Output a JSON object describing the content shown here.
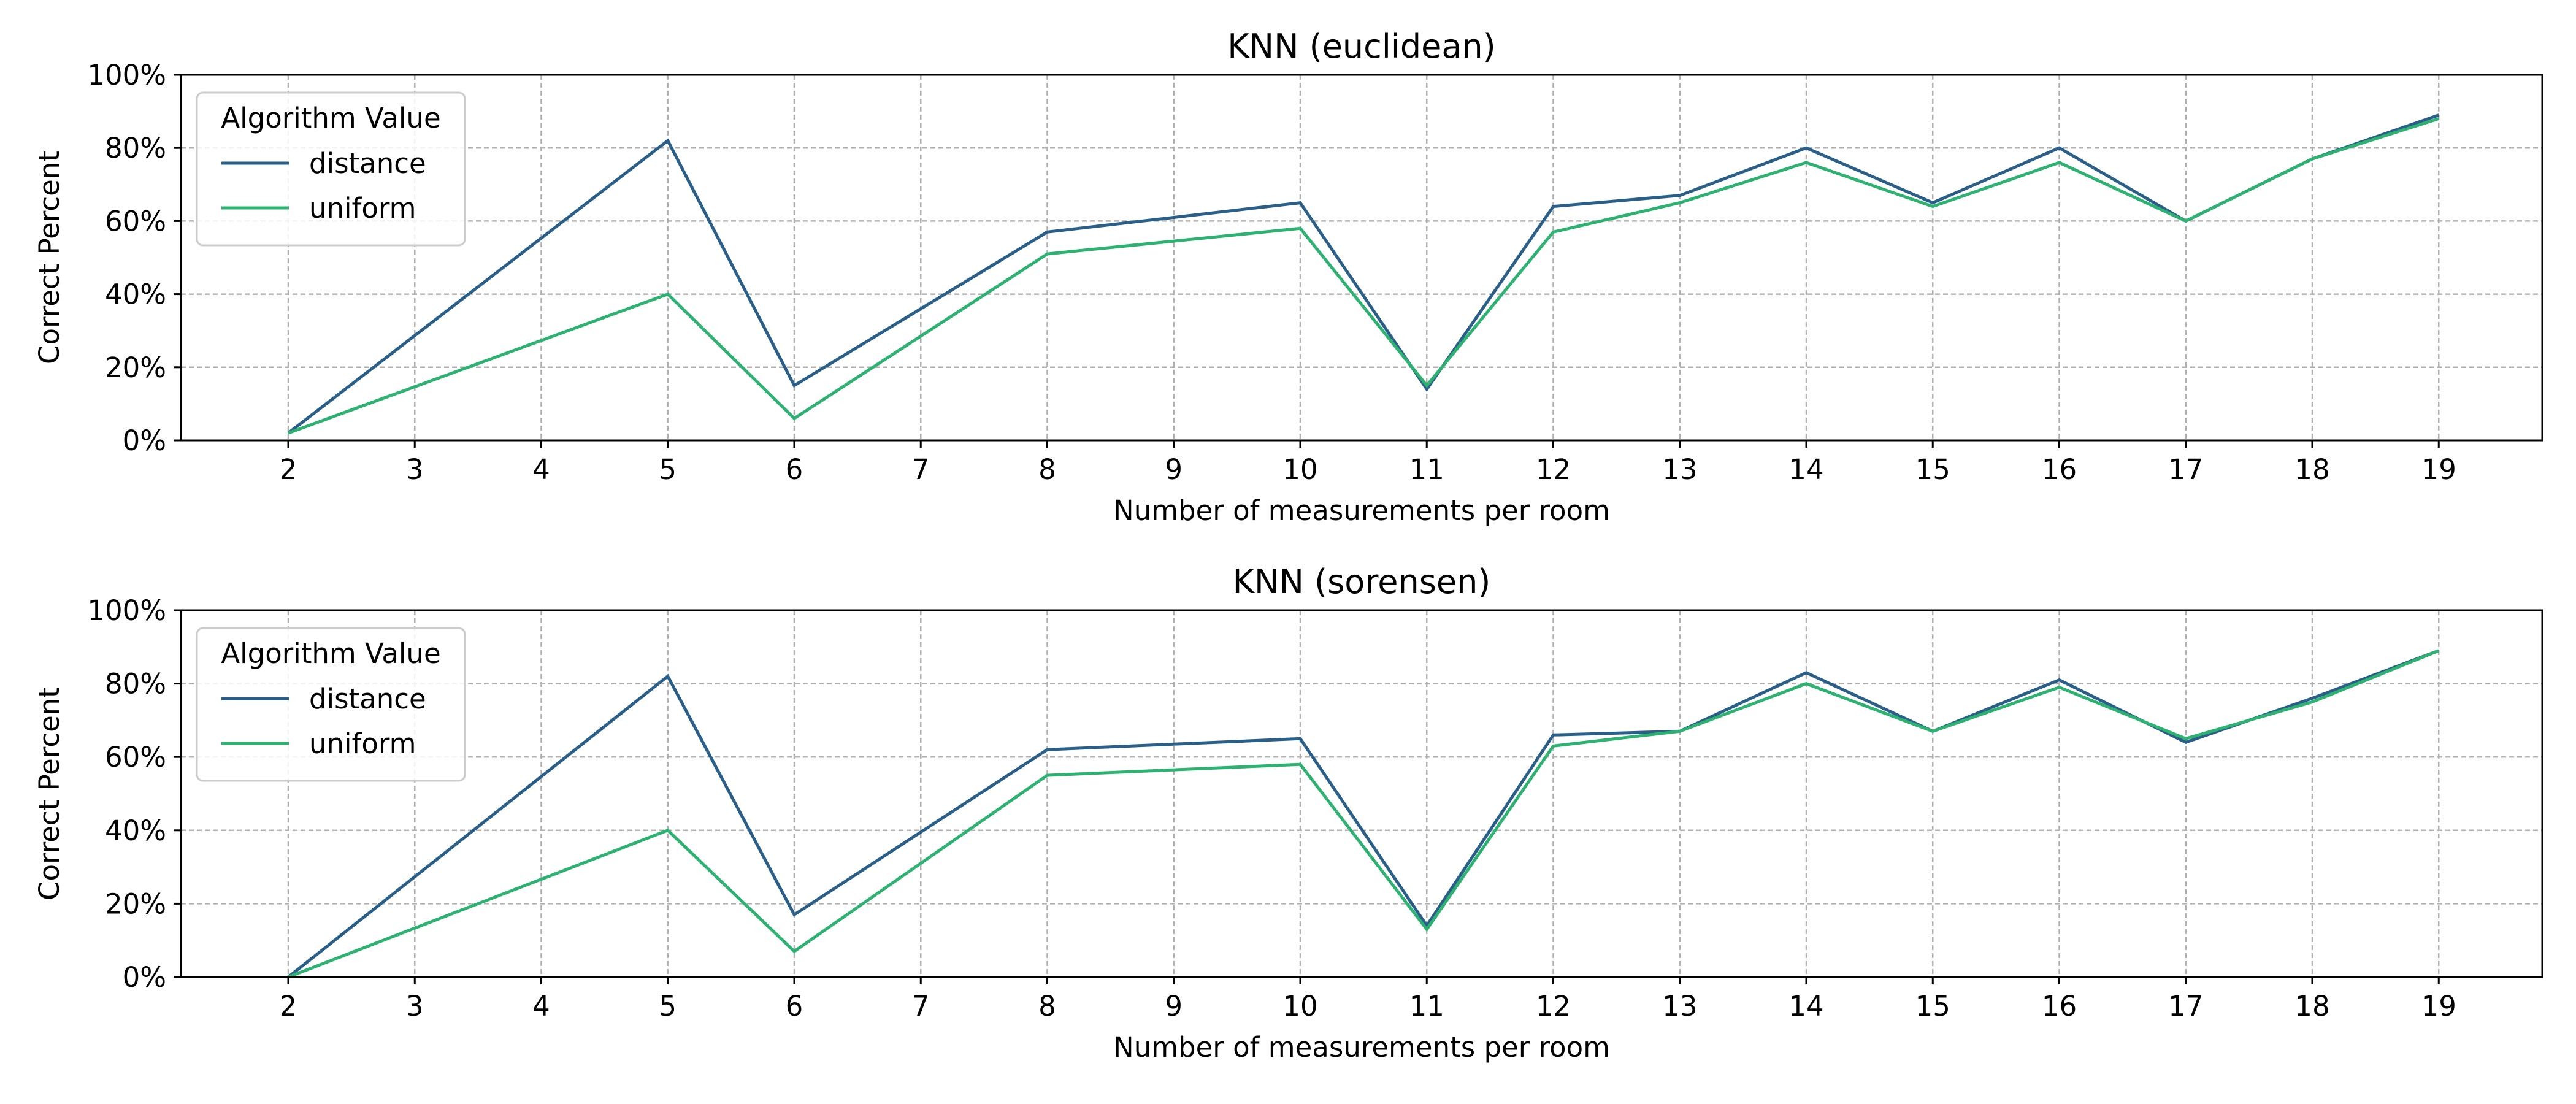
{
  "chart_data": [
    {
      "type": "line",
      "title": "KNN (euclidean)",
      "xlabel": "Number of measurements per room",
      "ylabel": "Correct Percent",
      "x": [
        2,
        3,
        4,
        5,
        6,
        7,
        8,
        9,
        10,
        11,
        12,
        13,
        14,
        15,
        16,
        17,
        18,
        19
      ],
      "x_ticks": [
        "2",
        "3",
        "4",
        "5",
        "6",
        "7",
        "8",
        "9",
        "10",
        "11",
        "12",
        "13",
        "14",
        "15",
        "16",
        "17",
        "18",
        "19"
      ],
      "y_ticks": [
        "0%",
        "20%",
        "40%",
        "60%",
        "80%",
        "100%"
      ],
      "ylim": [
        0,
        100
      ],
      "grid": true,
      "legend": {
        "title": "Algorithm Value",
        "position": "top-left"
      },
      "series": [
        {
          "name": "distance",
          "color": "#2a5f8a",
          "points": [
            [
              2,
              2
            ],
            [
              5,
              82
            ],
            [
              6,
              15
            ],
            [
              8,
              57
            ],
            [
              10,
              65
            ],
            [
              11,
              14
            ],
            [
              12,
              64
            ],
            [
              13,
              67
            ],
            [
              14,
              80
            ],
            [
              15,
              65
            ],
            [
              16,
              80
            ],
            [
              17,
              60
            ],
            [
              18,
              77
            ],
            [
              19,
              89
            ]
          ]
        },
        {
          "name": "uniform",
          "color": "#2db272",
          "points": [
            [
              2,
              2
            ],
            [
              5,
              40
            ],
            [
              6,
              6
            ],
            [
              8,
              51
            ],
            [
              10,
              58
            ],
            [
              11,
              15
            ],
            [
              12,
              57
            ],
            [
              13,
              65
            ],
            [
              14,
              76
            ],
            [
              15,
              64
            ],
            [
              16,
              76
            ],
            [
              17,
              60
            ],
            [
              18,
              77
            ],
            [
              19,
              88
            ]
          ]
        }
      ]
    },
    {
      "type": "line",
      "title": "KNN (sorensen)",
      "xlabel": "Number of measurements per room",
      "ylabel": "Correct Percent",
      "x": [
        2,
        3,
        4,
        5,
        6,
        7,
        8,
        9,
        10,
        11,
        12,
        13,
        14,
        15,
        16,
        17,
        18,
        19
      ],
      "x_ticks": [
        "2",
        "3",
        "4",
        "5",
        "6",
        "7",
        "8",
        "9",
        "10",
        "11",
        "12",
        "13",
        "14",
        "15",
        "16",
        "17",
        "18",
        "19"
      ],
      "y_ticks": [
        "0%",
        "20%",
        "40%",
        "60%",
        "80%",
        "100%"
      ],
      "ylim": [
        0,
        100
      ],
      "grid": true,
      "legend": {
        "title": "Algorithm Value",
        "position": "top-left"
      },
      "series": [
        {
          "name": "distance",
          "color": "#2a5f8a",
          "points": [
            [
              2,
              0
            ],
            [
              5,
              82
            ],
            [
              6,
              17
            ],
            [
              8,
              62
            ],
            [
              10,
              65
            ],
            [
              11,
              14
            ],
            [
              12,
              66
            ],
            [
              13,
              67
            ],
            [
              14,
              83
            ],
            [
              15,
              67
            ],
            [
              16,
              81
            ],
            [
              17,
              64
            ],
            [
              18,
              76
            ],
            [
              19,
              89
            ]
          ]
        },
        {
          "name": "uniform",
          "color": "#2db272",
          "points": [
            [
              2,
              0
            ],
            [
              5,
              40
            ],
            [
              6,
              7
            ],
            [
              8,
              55
            ],
            [
              10,
              58
            ],
            [
              11,
              13
            ],
            [
              12,
              63
            ],
            [
              13,
              67
            ],
            [
              14,
              80
            ],
            [
              15,
              67
            ],
            [
              16,
              79
            ],
            [
              17,
              65
            ],
            [
              18,
              75
            ],
            [
              19,
              89
            ]
          ]
        }
      ]
    }
  ]
}
